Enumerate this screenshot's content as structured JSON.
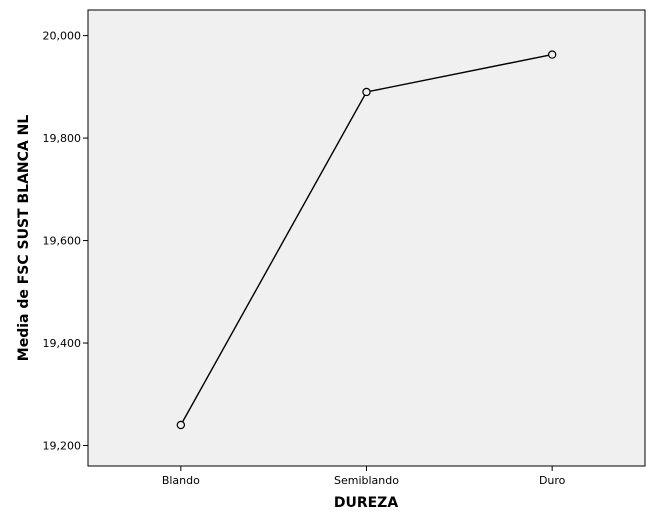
{
  "chart_data": {
    "type": "line",
    "title": "",
    "xlabel": "DUREZA",
    "ylabel": "Media de FSC SUST BLANCA NL",
    "categories": [
      "Blando",
      "Semiblando",
      "Duro"
    ],
    "series": [
      {
        "values": [
          19.24,
          19.89,
          19.963
        ]
      }
    ],
    "ylim": [
      19.16,
      20.05
    ],
    "yticks": [
      19.2,
      19.4,
      19.6,
      19.8,
      20.0
    ],
    "ytick_labels": [
      "19,200",
      "19,400",
      "19,600",
      "19,800",
      "20,000"
    ],
    "grid": false,
    "legend": "none",
    "colors": {
      "plot_background": "#f0f0f0",
      "line": "#000000",
      "marker_fill": "#f0f0f0"
    }
  }
}
